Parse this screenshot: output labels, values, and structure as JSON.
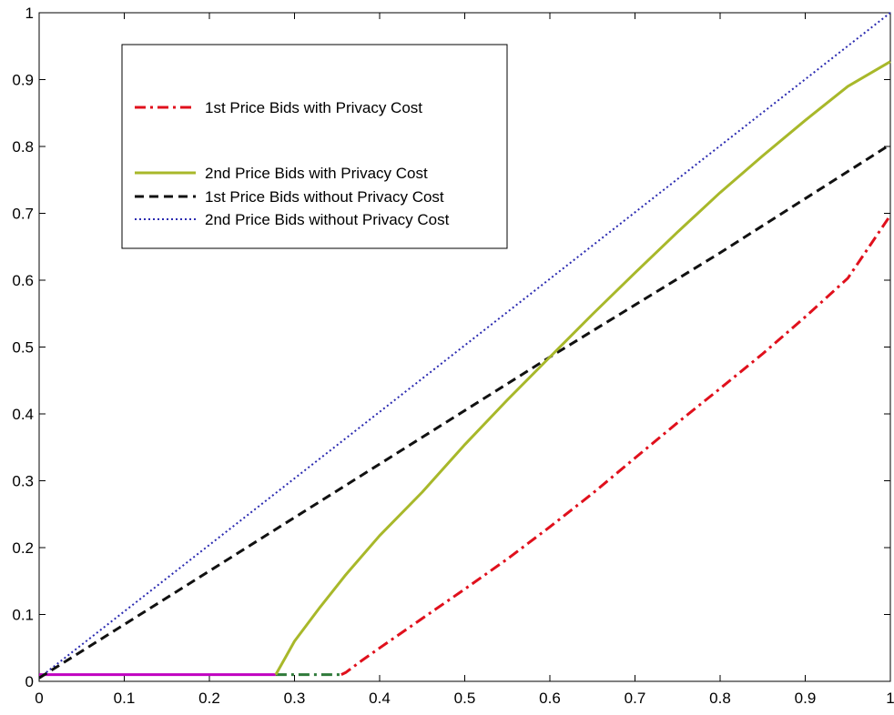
{
  "chart_data": {
    "type": "line",
    "title": "",
    "xlabel": "",
    "ylabel": "",
    "xlim": [
      0,
      1
    ],
    "ylim": [
      0,
      1
    ],
    "grid": false,
    "legend_position": "top-left",
    "xticks": [
      "0",
      "0.1",
      "0.2",
      "0.3",
      "0.4",
      "0.5",
      "0.6",
      "0.7",
      "0.8",
      "0.9",
      "1"
    ],
    "yticks": [
      "0",
      "0.1",
      "0.2",
      "0.3",
      "0.4",
      "0.5",
      "0.6",
      "0.7",
      "0.8",
      "0.9",
      "1"
    ],
    "series": [
      {
        "name": "1st Price Bids with Privacy Cost",
        "color": "#e0101c",
        "style": "dashdot",
        "x": [
          0.355,
          0.36,
          0.38,
          0.4,
          0.45,
          0.5,
          0.55,
          0.6,
          0.65,
          0.7,
          0.75,
          0.8,
          0.85,
          0.9,
          0.95,
          1.0
        ],
        "y": [
          0.01,
          0.013,
          0.032,
          0.05,
          0.094,
          0.138,
          0.183,
          0.231,
          0.281,
          0.334,
          0.387,
          0.438,
          0.49,
          0.545,
          0.603,
          0.697
        ]
      },
      {
        "name": "2nd Price Bids with Privacy Cost",
        "color": "#a8b82a",
        "style": "solid",
        "x": [
          0.278,
          0.29,
          0.3,
          0.33,
          0.36,
          0.4,
          0.45,
          0.5,
          0.55,
          0.6,
          0.65,
          0.7,
          0.75,
          0.8,
          0.85,
          0.9,
          0.95,
          1.0
        ],
        "y": [
          0.01,
          0.037,
          0.06,
          0.111,
          0.159,
          0.218,
          0.283,
          0.354,
          0.421,
          0.485,
          0.549,
          0.611,
          0.672,
          0.731,
          0.786,
          0.839,
          0.89,
          0.927
        ]
      },
      {
        "name": "1st Price Bids without Privacy Cost",
        "color": "#111111",
        "style": "dashed",
        "x": [
          0.0,
          0.1,
          0.2,
          0.3,
          0.4,
          0.5,
          0.6,
          0.7,
          0.8,
          0.9,
          1.0
        ],
        "y": [
          0.005,
          0.085,
          0.165,
          0.245,
          0.325,
          0.405,
          0.485,
          0.563,
          0.641,
          0.722,
          0.803
        ]
      },
      {
        "name": "2nd Price Bids without Privacy Cost",
        "color": "#2a2ab0",
        "style": "dotted",
        "x": [
          0.0,
          1.0
        ],
        "y": [
          0.005,
          1.0
        ]
      }
    ],
    "extra_lines": [
      {
        "color": "#c000c0",
        "style": "solid",
        "x": [
          0.0,
          0.278
        ],
        "y": [
          0.01,
          0.01
        ]
      },
      {
        "color": "#2f7a3a",
        "style": "dashdot",
        "x": [
          0.278,
          0.355
        ],
        "y": [
          0.01,
          0.01
        ]
      }
    ]
  }
}
